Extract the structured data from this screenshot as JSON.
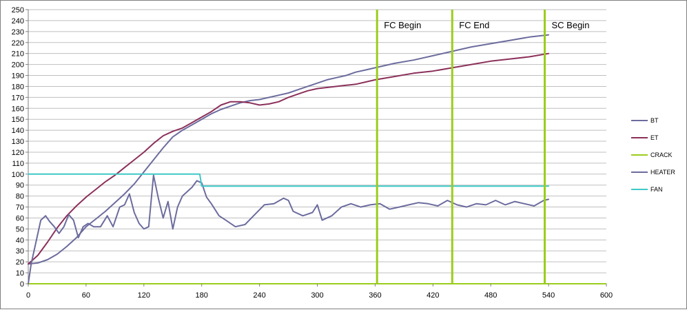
{
  "chart_data": {
    "type": "line",
    "title": "",
    "xlabel": "",
    "ylabel": "",
    "xlim": [
      0,
      600
    ],
    "ylim": [
      0,
      250
    ],
    "x_ticks": [
      0,
      60,
      120,
      180,
      240,
      300,
      360,
      420,
      480,
      540,
      600
    ],
    "y_ticks": [
      0,
      10,
      20,
      30,
      40,
      50,
      60,
      70,
      80,
      90,
      100,
      110,
      120,
      130,
      140,
      150,
      160,
      170,
      180,
      190,
      200,
      210,
      220,
      230,
      240,
      250
    ],
    "grid": "horizontal",
    "legend_position": "right",
    "colors": {
      "BT": "#6b6b9e",
      "ET": "#8b2f5a",
      "CRACK": "#9acd1a",
      "HEATER": "#6b6b9e",
      "FAN": "#3ec8c8",
      "grid": "#bfbfbf"
    },
    "series": [
      {
        "name": "BT",
        "x": [
          0,
          10,
          20,
          30,
          40,
          50,
          60,
          70,
          80,
          90,
          100,
          110,
          120,
          130,
          140,
          150,
          160,
          170,
          180,
          190,
          200,
          210,
          220,
          230,
          240,
          250,
          260,
          270,
          280,
          290,
          300,
          310,
          320,
          330,
          340,
          350,
          360,
          380,
          400,
          420,
          440,
          460,
          480,
          500,
          520,
          540
        ],
        "y": [
          18,
          19,
          22,
          27,
          34,
          42,
          52,
          59,
          66,
          74,
          82,
          91,
          102,
          113,
          124,
          134,
          140,
          145,
          150,
          155,
          159,
          162,
          165,
          167,
          168,
          170,
          172,
          174,
          177,
          180,
          183,
          186,
          188,
          190,
          193,
          195,
          197,
          201,
          204,
          208,
          212,
          216,
          219,
          222,
          225,
          227
        ]
      },
      {
        "name": "ET",
        "x": [
          0,
          10,
          20,
          30,
          40,
          50,
          60,
          70,
          80,
          90,
          100,
          110,
          120,
          130,
          140,
          150,
          160,
          170,
          180,
          190,
          200,
          210,
          220,
          230,
          240,
          250,
          260,
          270,
          280,
          290,
          300,
          310,
          320,
          330,
          340,
          350,
          360,
          380,
          400,
          420,
          440,
          460,
          480,
          500,
          520,
          540
        ],
        "y": [
          18,
          26,
          38,
          51,
          62,
          71,
          79,
          86,
          93,
          99,
          106,
          113,
          120,
          128,
          135,
          139,
          142,
          147,
          152,
          157,
          163,
          166,
          166,
          165,
          163,
          164,
          166,
          170,
          173,
          176,
          178,
          179,
          180,
          181,
          182,
          184,
          186,
          189,
          192,
          194,
          197,
          200,
          203,
          205,
          207,
          210
        ]
      },
      {
        "name": "HEATER",
        "x": [
          0,
          3,
          8,
          13,
          18,
          22,
          27,
          32,
          37,
          42,
          47,
          52,
          57,
          62,
          68,
          75,
          82,
          88,
          95,
          100,
          105,
          110,
          115,
          120,
          125,
          130,
          135,
          140,
          145,
          150,
          155,
          160,
          165,
          170,
          175,
          180,
          185,
          190,
          198,
          205,
          215,
          225,
          235,
          245,
          255,
          265,
          270,
          275,
          285,
          295,
          300,
          305,
          315,
          325,
          335,
          345,
          355,
          365,
          375,
          385,
          395,
          405,
          415,
          425,
          435,
          445,
          455,
          465,
          475,
          485,
          495,
          505,
          515,
          525,
          535,
          540
        ],
        "y": [
          0,
          18,
          38,
          58,
          62,
          57,
          52,
          46,
          52,
          63,
          58,
          42,
          52,
          55,
          52,
          52,
          62,
          52,
          70,
          72,
          82,
          65,
          55,
          50,
          52,
          99,
          78,
          60,
          75,
          50,
          70,
          80,
          84,
          88,
          94,
          92,
          79,
          73,
          62,
          58,
          52,
          54,
          63,
          72,
          73,
          78,
          76,
          66,
          62,
          65,
          72,
          58,
          62,
          70,
          73,
          70,
          72,
          73,
          68,
          70,
          72,
          74,
          73,
          71,
          76,
          72,
          70,
          73,
          72,
          76,
          72,
          75,
          73,
          71,
          76,
          77
        ]
      },
      {
        "name": "FAN",
        "x": [
          0,
          178,
          180,
          540
        ],
        "y": [
          100,
          100,
          89,
          89
        ]
      }
    ],
    "crack_events": [
      {
        "name": "CRACK",
        "x": 362,
        "label": "FC Begin"
      },
      {
        "name": "CRACK",
        "x": 440,
        "label": "FC End"
      },
      {
        "name": "CRACK",
        "x": 536,
        "label": "SC Begin"
      }
    ],
    "legend": [
      "BT",
      "ET",
      "CRACK",
      "HEATER",
      "FAN"
    ]
  }
}
